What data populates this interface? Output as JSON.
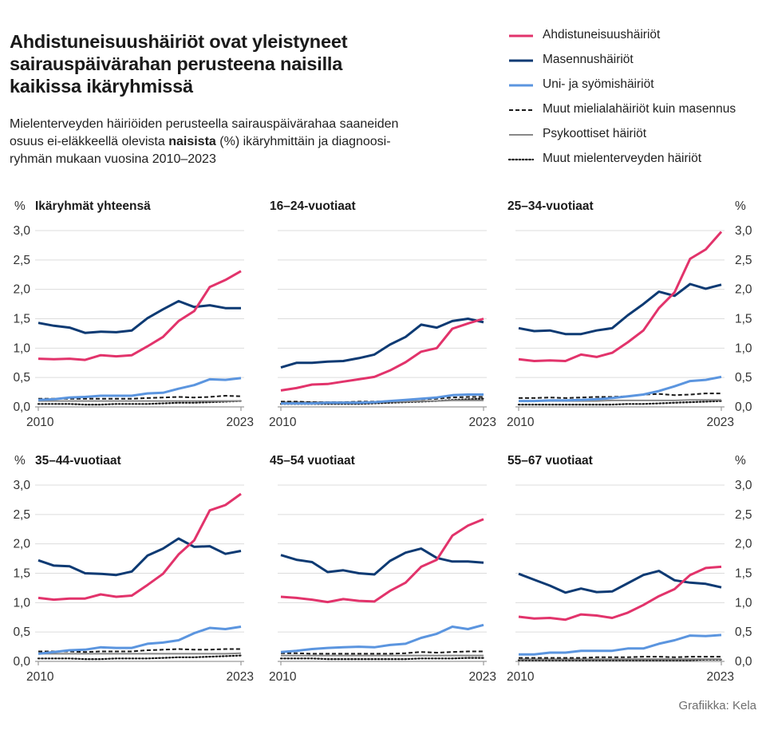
{
  "title_lines": [
    "Ahdistuneisuushäiriöt ovat yleistyneet",
    "sairauspäivärahan perusteena naisilla",
    "kaikissa ikäryhmissä"
  ],
  "subtitle_lines": [
    [
      "Mielenterveyden häiriöiden perusteella sairauspäivärahaa saaneiden"
    ],
    [
      "osuus ei-eläkkeellä olevista ",
      "naisista",
      " (%) ikäryhmittäin ja diagnoosi-"
    ],
    [
      "ryhmän mukaan vuosina 2010–2023"
    ]
  ],
  "credit": "Grafiikka: Kela",
  "legend": [
    {
      "label": "Ahdistuneisuushäiriöt",
      "color": "#e2336b",
      "style": "solid",
      "width": 3
    },
    {
      "label": "Masennushäiriöt",
      "color": "#0d3a73",
      "style": "solid",
      "width": 3
    },
    {
      "label": "Uni- ja syömishäiriöt",
      "color": "#5b95df",
      "style": "solid",
      "width": 3
    },
    {
      "label": "Muut mielialahäiriöt kuin masennus",
      "color": "#1a1a1a",
      "style": "dashed",
      "width": 2
    },
    {
      "label": "Psykoottiset häiriöt",
      "color": "#888888",
      "style": "solid",
      "width": 2
    },
    {
      "label": "Muut mielenterveyden häiriöt",
      "color": "#1a1a1a",
      "style": "dotted",
      "width": 2.2
    }
  ],
  "chart_data": [
    {
      "type": "line",
      "title": "Ikäryhmät yhteensä",
      "unit": "%",
      "x": [
        2010,
        2011,
        2012,
        2013,
        2014,
        2015,
        2016,
        2017,
        2018,
        2019,
        2020,
        2021,
        2022,
        2023
      ],
      "xticks": [
        "2010",
        "2023"
      ],
      "yticks": [
        "0,0",
        "0,5",
        "1,0",
        "1,5",
        "2,0",
        "2,5",
        "3,0"
      ],
      "ylim": [
        0,
        3.0
      ],
      "grid": true,
      "series": [
        {
          "name": "Ahdistuneisuushäiriöt",
          "values": [
            0.82,
            0.81,
            0.82,
            0.8,
            0.88,
            0.86,
            0.88,
            1.03,
            1.19,
            1.46,
            1.63,
            2.04,
            2.16,
            2.31
          ]
        },
        {
          "name": "Masennushäiriöt",
          "values": [
            1.43,
            1.38,
            1.35,
            1.26,
            1.28,
            1.27,
            1.3,
            1.51,
            1.66,
            1.8,
            1.7,
            1.73,
            1.68,
            1.68
          ]
        },
        {
          "name": "Uni- ja syömishäiriöt",
          "values": [
            0.12,
            0.13,
            0.16,
            0.17,
            0.19,
            0.19,
            0.19,
            0.23,
            0.24,
            0.31,
            0.37,
            0.47,
            0.46,
            0.49
          ]
        },
        {
          "name": "Muut mielialahäiriöt kuin masennus",
          "values": [
            0.14,
            0.14,
            0.14,
            0.14,
            0.14,
            0.14,
            0.14,
            0.15,
            0.16,
            0.17,
            0.16,
            0.17,
            0.19,
            0.18
          ]
        },
        {
          "name": "Psykoottiset häiriöt",
          "values": [
            0.1,
            0.1,
            0.1,
            0.1,
            0.1,
            0.1,
            0.1,
            0.1,
            0.1,
            0.1,
            0.1,
            0.1,
            0.1,
            0.1
          ]
        },
        {
          "name": "Muut mielenterveyden häiriöt",
          "values": [
            0.05,
            0.05,
            0.05,
            0.04,
            0.04,
            0.05,
            0.05,
            0.05,
            0.06,
            0.07,
            0.07,
            0.08,
            0.09,
            0.1
          ]
        }
      ]
    },
    {
      "type": "line",
      "title": "16–24-vuotiaat",
      "unit": "%",
      "x": [
        2010,
        2011,
        2012,
        2013,
        2014,
        2015,
        2016,
        2017,
        2018,
        2019,
        2020,
        2021,
        2022,
        2023
      ],
      "xticks": [
        "2010",
        "2023"
      ],
      "yticks": [
        "0,0",
        "0,5",
        "1,0",
        "1,5",
        "2,0",
        "2,5",
        "3,0"
      ],
      "ylim": [
        0,
        3.0
      ],
      "grid": true,
      "series": [
        {
          "name": "Ahdistuneisuushäiriöt",
          "values": [
            0.28,
            0.32,
            0.38,
            0.39,
            0.43,
            0.47,
            0.51,
            0.62,
            0.76,
            0.94,
            1.0,
            1.33,
            1.42,
            1.5
          ]
        },
        {
          "name": "Masennushäiriöt",
          "values": [
            0.67,
            0.75,
            0.75,
            0.77,
            0.78,
            0.83,
            0.89,
            1.06,
            1.19,
            1.4,
            1.35,
            1.46,
            1.5,
            1.44
          ]
        },
        {
          "name": "Uni- ja syömishäiriöt",
          "values": [
            0.06,
            0.06,
            0.06,
            0.07,
            0.07,
            0.07,
            0.08,
            0.1,
            0.12,
            0.14,
            0.16,
            0.2,
            0.21,
            0.21
          ]
        },
        {
          "name": "Muut mielialahäiriöt kuin masennus",
          "values": [
            0.09,
            0.09,
            0.08,
            0.08,
            0.08,
            0.09,
            0.09,
            0.1,
            0.12,
            0.13,
            0.14,
            0.16,
            0.17,
            0.17
          ]
        },
        {
          "name": "Psykoottiset häiriöt",
          "values": [
            0.08,
            0.08,
            0.08,
            0.08,
            0.08,
            0.08,
            0.08,
            0.09,
            0.09,
            0.1,
            0.1,
            0.11,
            0.11,
            0.11
          ]
        },
        {
          "name": "Muut mielenterveyden häiriöt",
          "values": [
            0.05,
            0.05,
            0.05,
            0.05,
            0.05,
            0.05,
            0.06,
            0.07,
            0.08,
            0.09,
            0.1,
            0.12,
            0.13,
            0.14
          ]
        }
      ]
    },
    {
      "type": "line",
      "title": "25–34-vuotiaat",
      "unit": "%",
      "x": [
        2010,
        2011,
        2012,
        2013,
        2014,
        2015,
        2016,
        2017,
        2018,
        2019,
        2020,
        2021,
        2022,
        2023
      ],
      "xticks": [
        "2010",
        "2023"
      ],
      "yticks": [
        "0,0",
        "0,5",
        "1,0",
        "1,5",
        "2,0",
        "2,5",
        "3,0"
      ],
      "ylim": [
        0,
        3.0
      ],
      "grid": true,
      "series": [
        {
          "name": "Ahdistuneisuushäiriöt",
          "values": [
            0.81,
            0.78,
            0.79,
            0.78,
            0.89,
            0.85,
            0.92,
            1.1,
            1.3,
            1.68,
            1.95,
            2.52,
            2.68,
            2.98
          ]
        },
        {
          "name": "Masennushäiriöt",
          "values": [
            1.34,
            1.29,
            1.3,
            1.24,
            1.24,
            1.3,
            1.34,
            1.56,
            1.75,
            1.96,
            1.89,
            2.09,
            2.01,
            2.08
          ]
        },
        {
          "name": "Uni- ja syömishäiriöt",
          "values": [
            0.1,
            0.1,
            0.11,
            0.11,
            0.12,
            0.13,
            0.15,
            0.18,
            0.21,
            0.27,
            0.35,
            0.44,
            0.46,
            0.51
          ]
        },
        {
          "name": "Muut mielialahäiriöt kuin masennus",
          "values": [
            0.15,
            0.15,
            0.16,
            0.15,
            0.16,
            0.17,
            0.17,
            0.18,
            0.21,
            0.22,
            0.2,
            0.21,
            0.23,
            0.23
          ]
        },
        {
          "name": "Psykoottiset häiriöt",
          "values": [
            0.1,
            0.1,
            0.1,
            0.1,
            0.1,
            0.1,
            0.11,
            0.11,
            0.11,
            0.11,
            0.11,
            0.12,
            0.12,
            0.12
          ]
        },
        {
          "name": "Muut mielenterveyden häiriöt",
          "values": [
            0.04,
            0.04,
            0.04,
            0.04,
            0.04,
            0.04,
            0.04,
            0.05,
            0.05,
            0.06,
            0.07,
            0.08,
            0.09,
            0.1
          ]
        }
      ]
    },
    {
      "type": "line",
      "title": "35–44-vuotiaat",
      "unit": "%",
      "x": [
        2010,
        2011,
        2012,
        2013,
        2014,
        2015,
        2016,
        2017,
        2018,
        2019,
        2020,
        2021,
        2022,
        2023
      ],
      "xticks": [
        "2010",
        "2023"
      ],
      "yticks": [
        "0,0",
        "0,5",
        "1,0",
        "1,5",
        "2,0",
        "2,5",
        "3,0"
      ],
      "ylim": [
        0,
        3.0
      ],
      "grid": true,
      "series": [
        {
          "name": "Ahdistuneisuushäiriöt",
          "values": [
            1.08,
            1.05,
            1.07,
            1.07,
            1.14,
            1.1,
            1.12,
            1.3,
            1.49,
            1.82,
            2.06,
            2.57,
            2.66,
            2.85
          ]
        },
        {
          "name": "Masennushäiriöt",
          "values": [
            1.72,
            1.63,
            1.62,
            1.5,
            1.49,
            1.47,
            1.53,
            1.8,
            1.92,
            2.09,
            1.95,
            1.96,
            1.83,
            1.88
          ]
        },
        {
          "name": "Uni- ja syömishäiriöt",
          "values": [
            0.13,
            0.16,
            0.19,
            0.2,
            0.24,
            0.23,
            0.23,
            0.3,
            0.32,
            0.36,
            0.48,
            0.57,
            0.55,
            0.59
          ]
        },
        {
          "name": "Muut mielialahäiriöt kuin masennus",
          "values": [
            0.17,
            0.17,
            0.17,
            0.16,
            0.17,
            0.17,
            0.17,
            0.19,
            0.2,
            0.21,
            0.2,
            0.2,
            0.21,
            0.21
          ]
        },
        {
          "name": "Psykoottiset häiriöt",
          "values": [
            0.13,
            0.13,
            0.13,
            0.13,
            0.13,
            0.13,
            0.13,
            0.13,
            0.13,
            0.13,
            0.13,
            0.13,
            0.13,
            0.14
          ]
        },
        {
          "name": "Muut mielenterveyden häiriöt",
          "values": [
            0.05,
            0.05,
            0.05,
            0.04,
            0.04,
            0.05,
            0.05,
            0.05,
            0.06,
            0.07,
            0.07,
            0.08,
            0.09,
            0.1
          ]
        }
      ]
    },
    {
      "type": "line",
      "title": "45–54 vuotiaat",
      "unit": "%",
      "x": [
        2010,
        2011,
        2012,
        2013,
        2014,
        2015,
        2016,
        2017,
        2018,
        2019,
        2020,
        2021,
        2022,
        2023
      ],
      "xticks": [
        "2010",
        "2023"
      ],
      "yticks": [
        "0,0",
        "0,5",
        "1,0",
        "1,5",
        "2,0",
        "2,5",
        "3,0"
      ],
      "ylim": [
        0,
        3.0
      ],
      "grid": true,
      "series": [
        {
          "name": "Ahdistuneisuushäiriöt",
          "values": [
            1.1,
            1.08,
            1.05,
            1.01,
            1.06,
            1.03,
            1.02,
            1.2,
            1.34,
            1.61,
            1.73,
            2.14,
            2.31,
            2.42
          ]
        },
        {
          "name": "Masennushäiriöt",
          "values": [
            1.81,
            1.73,
            1.69,
            1.52,
            1.55,
            1.5,
            1.48,
            1.71,
            1.85,
            1.92,
            1.76,
            1.7,
            1.7,
            1.68
          ]
        },
        {
          "name": "Uni- ja syömishäiriöt",
          "values": [
            0.16,
            0.18,
            0.21,
            0.23,
            0.24,
            0.25,
            0.24,
            0.28,
            0.3,
            0.4,
            0.47,
            0.59,
            0.55,
            0.62
          ]
        },
        {
          "name": "Muut mielialahäiriöt kuin masennus",
          "values": [
            0.14,
            0.14,
            0.13,
            0.13,
            0.13,
            0.13,
            0.13,
            0.13,
            0.14,
            0.16,
            0.15,
            0.16,
            0.17,
            0.17
          ]
        },
        {
          "name": "Psykoottiset häiriöt",
          "values": [
            0.1,
            0.1,
            0.1,
            0.1,
            0.1,
            0.1,
            0.1,
            0.1,
            0.1,
            0.1,
            0.1,
            0.1,
            0.1,
            0.1
          ]
        },
        {
          "name": "Muut mielenterveyden häiriöt",
          "values": [
            0.05,
            0.05,
            0.05,
            0.04,
            0.04,
            0.04,
            0.04,
            0.04,
            0.04,
            0.05,
            0.05,
            0.05,
            0.06,
            0.06
          ]
        }
      ]
    },
    {
      "type": "line",
      "title": "55–67 vuotiaat",
      "unit": "%",
      "x": [
        2010,
        2011,
        2012,
        2013,
        2014,
        2015,
        2016,
        2017,
        2018,
        2019,
        2020,
        2021,
        2022,
        2023
      ],
      "xticks": [
        "2010",
        "2023"
      ],
      "yticks": [
        "0,0",
        "0,5",
        "1,0",
        "1,5",
        "2,0",
        "2,5",
        "3,0"
      ],
      "ylim": [
        0,
        3.0
      ],
      "grid": true,
      "series": [
        {
          "name": "Ahdistuneisuushäiriöt",
          "values": [
            0.76,
            0.73,
            0.74,
            0.71,
            0.8,
            0.78,
            0.74,
            0.83,
            0.96,
            1.11,
            1.23,
            1.47,
            1.59,
            1.61
          ]
        },
        {
          "name": "Masennushäiriöt",
          "values": [
            1.49,
            1.39,
            1.29,
            1.17,
            1.24,
            1.18,
            1.19,
            1.33,
            1.47,
            1.54,
            1.38,
            1.34,
            1.32,
            1.26
          ]
        },
        {
          "name": "Uni- ja syömishäiriöt",
          "values": [
            0.12,
            0.12,
            0.15,
            0.15,
            0.18,
            0.18,
            0.18,
            0.22,
            0.22,
            0.3,
            0.36,
            0.44,
            0.43,
            0.45
          ]
        },
        {
          "name": "Muut mielialahäiriöt kuin masennus",
          "values": [
            0.06,
            0.06,
            0.06,
            0.06,
            0.06,
            0.07,
            0.07,
            0.07,
            0.08,
            0.08,
            0.07,
            0.08,
            0.08,
            0.08
          ]
        },
        {
          "name": "Psykoottiset häiriöt",
          "values": [
            0.04,
            0.04,
            0.04,
            0.04,
            0.04,
            0.04,
            0.04,
            0.04,
            0.04,
            0.04,
            0.04,
            0.04,
            0.04,
            0.04
          ]
        },
        {
          "name": "Muut mielenterveyden häiriöt",
          "values": [
            0.02,
            0.02,
            0.02,
            0.02,
            0.02,
            0.02,
            0.02,
            0.02,
            0.02,
            0.02,
            0.02,
            0.02,
            0.03,
            0.03
          ]
        }
      ]
    }
  ]
}
